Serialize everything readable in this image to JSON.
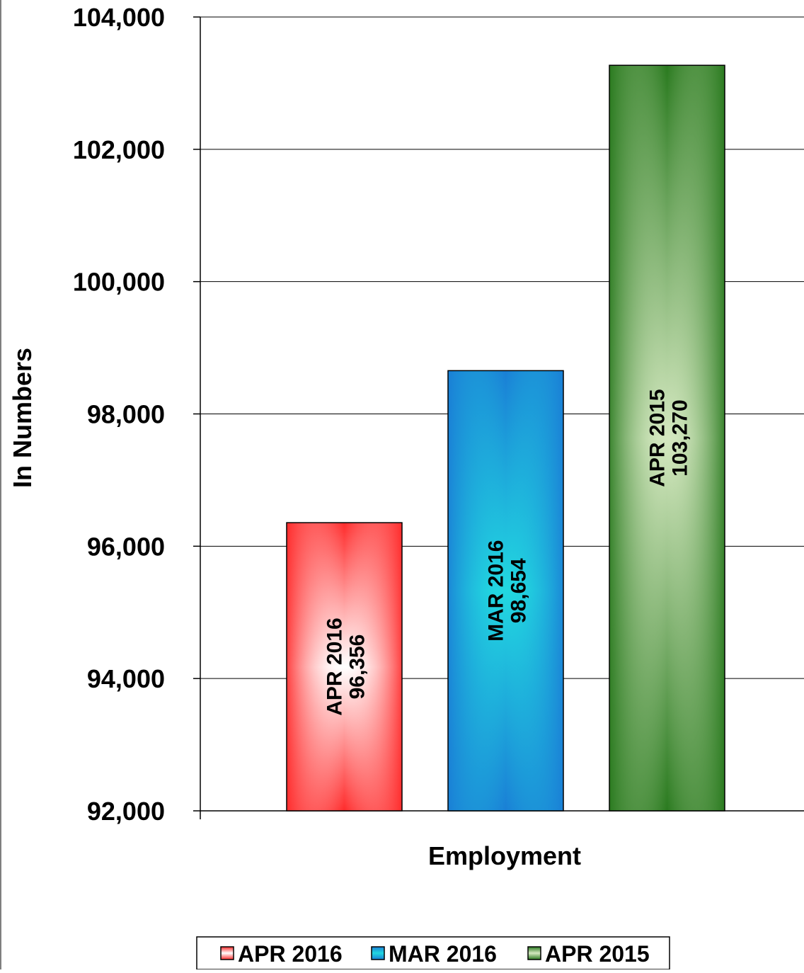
{
  "chart_data": {
    "type": "bar",
    "categories": [
      "Employment"
    ],
    "series": [
      {
        "name": "APR 2016",
        "values": [
          96356
        ],
        "value_label": "96,356",
        "color": "#ff2b2b"
      },
      {
        "name": "MAR 2016",
        "values": [
          98654
        ],
        "value_label": "98,654",
        "color": "#1a7fd6"
      },
      {
        "name": "APR 2015",
        "values": [
          103270
        ],
        "value_label": "103,270",
        "color": "#2a7a1f"
      }
    ],
    "title": "",
    "xlabel": "Employment",
    "ylabel": "In Numbers",
    "ylim": [
      92000,
      104000
    ],
    "yticks": [
      92000,
      94000,
      96000,
      98000,
      100000,
      102000,
      104000
    ],
    "ytick_labels": [
      "92,000",
      "94,000",
      "96,000",
      "98,000",
      "100,000",
      "102,000",
      "104,000"
    ],
    "grid": true,
    "legend_position": "bottom"
  }
}
